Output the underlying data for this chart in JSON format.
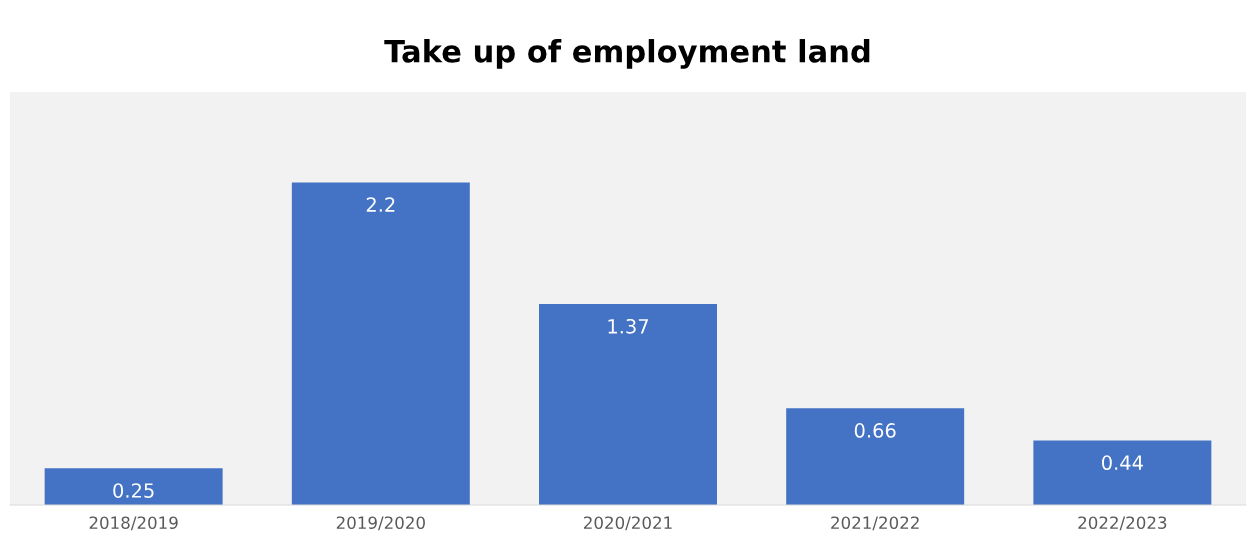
{
  "chart_data": {
    "type": "bar",
    "title": "Take up of employment land",
    "categories": [
      "2018/2019",
      "2019/2020",
      "2020/2021",
      "2021/2022",
      "2022/2023"
    ],
    "values": [
      0.25,
      2.2,
      1.37,
      0.66,
      0.44
    ],
    "color": "#4472c4",
    "data_labels": true,
    "legend": false
  }
}
